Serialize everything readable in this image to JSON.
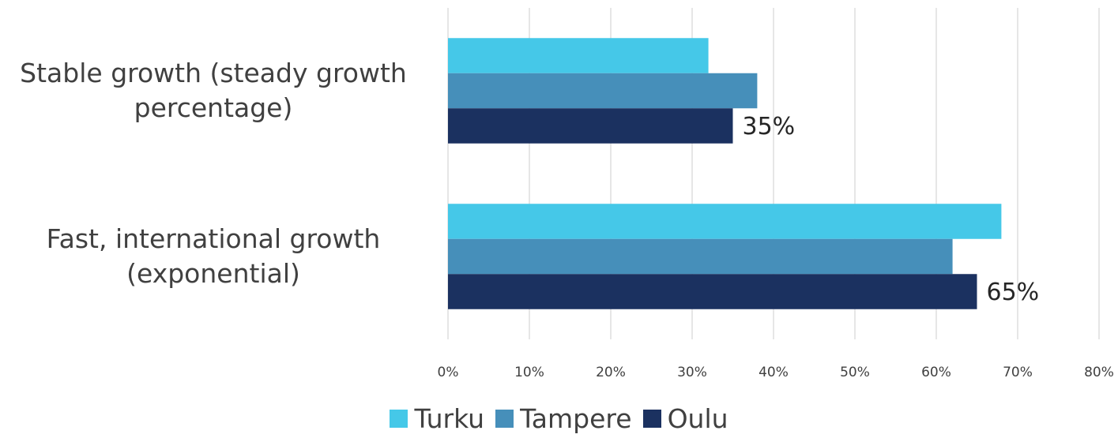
{
  "chart_data": {
    "type": "hbar",
    "categories": [
      "Stable growth (steady growth percentage)",
      "Fast, international growth (exponential)"
    ],
    "series": [
      {
        "name": "Turku",
        "color": "#45c8e8",
        "values": [
          32,
          68
        ]
      },
      {
        "name": "Tampere",
        "color": "#468fba",
        "values": [
          38,
          62
        ]
      },
      {
        "name": "Oulu",
        "color": "#1b3160",
        "values": [
          35,
          65
        ],
        "value_labels": [
          "35%",
          "65%"
        ]
      }
    ],
    "xlim": [
      0,
      80
    ],
    "xticks": [
      {
        "value": 0,
        "label": "0%"
      },
      {
        "value": 10,
        "label": "10%"
      },
      {
        "value": 20,
        "label": "20%"
      },
      {
        "value": 30,
        "label": "30%"
      },
      {
        "value": 40,
        "label": "40%"
      },
      {
        "value": 50,
        "label": "50%"
      },
      {
        "value": 60,
        "label": "60%"
      },
      {
        "value": 70,
        "label": "70%"
      },
      {
        "value": 80,
        "label": "80%"
      }
    ],
    "grid": true,
    "legend": "bottom"
  }
}
